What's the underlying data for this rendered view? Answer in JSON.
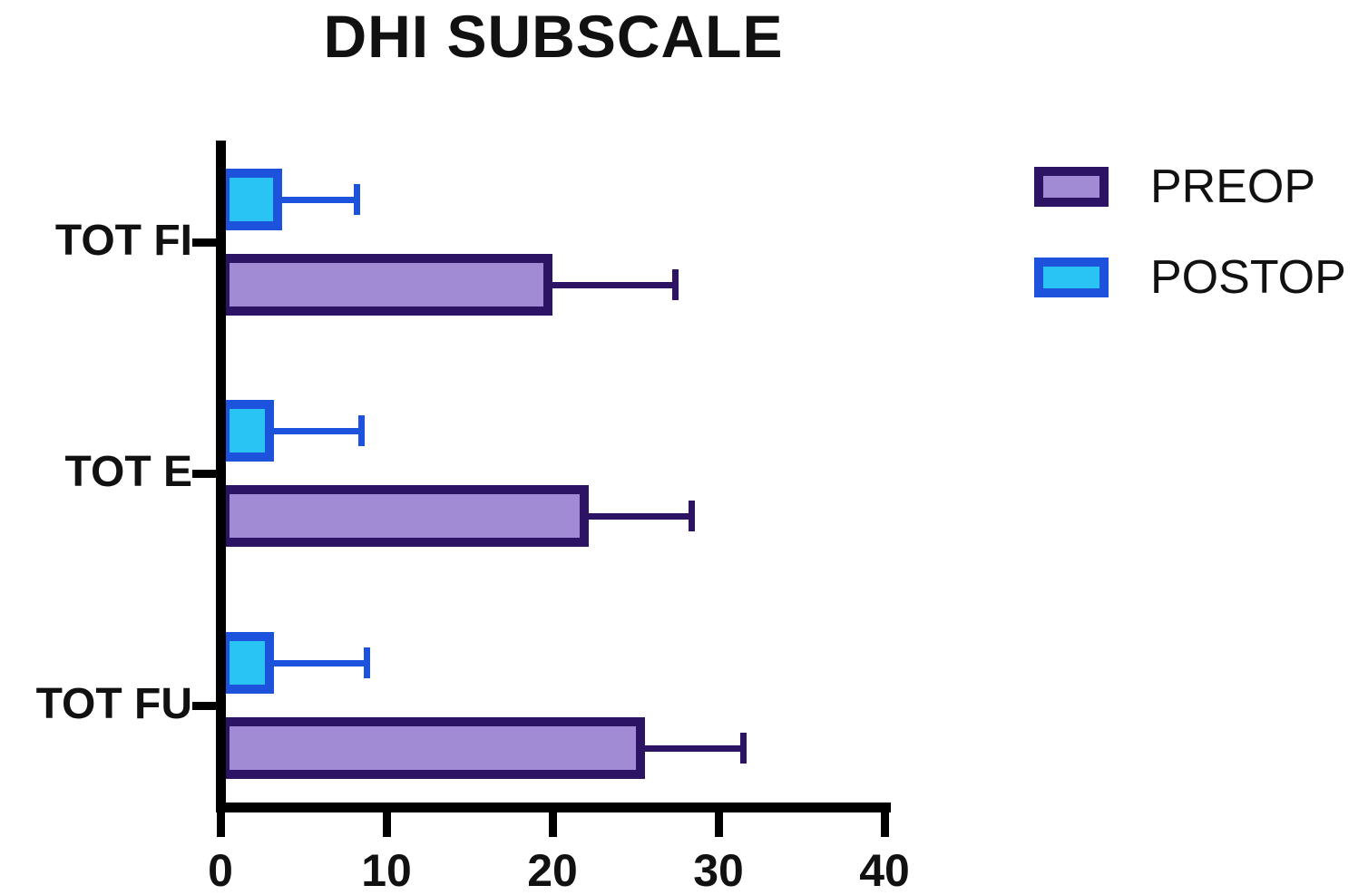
{
  "title": "DHI SUBSCALE",
  "chart_data": {
    "type": "bar",
    "orientation": "horizontal",
    "title": "DHI SUBSCALE",
    "categories": [
      "TOT FI",
      "TOT E",
      "TOT FU"
    ],
    "series": [
      {
        "name": "PREOP",
        "values": [
          20,
          22.2,
          25.6
        ],
        "error_upper": [
          27.4,
          28.4,
          31.5
        ],
        "fill": "#A18BD4",
        "border": "#2D1363"
      },
      {
        "name": "POSTOP",
        "values": [
          3.7,
          3.2,
          3.2
        ],
        "error_upper": [
          8.2,
          8.5,
          8.8
        ],
        "fill": "#29C3F4",
        "border": "#1D53DC"
      }
    ],
    "xlim": [
      0,
      40
    ],
    "xticks": [
      0,
      10,
      20,
      30,
      40
    ],
    "legend_position": "right",
    "grid": false,
    "axis_color": "#000000"
  }
}
